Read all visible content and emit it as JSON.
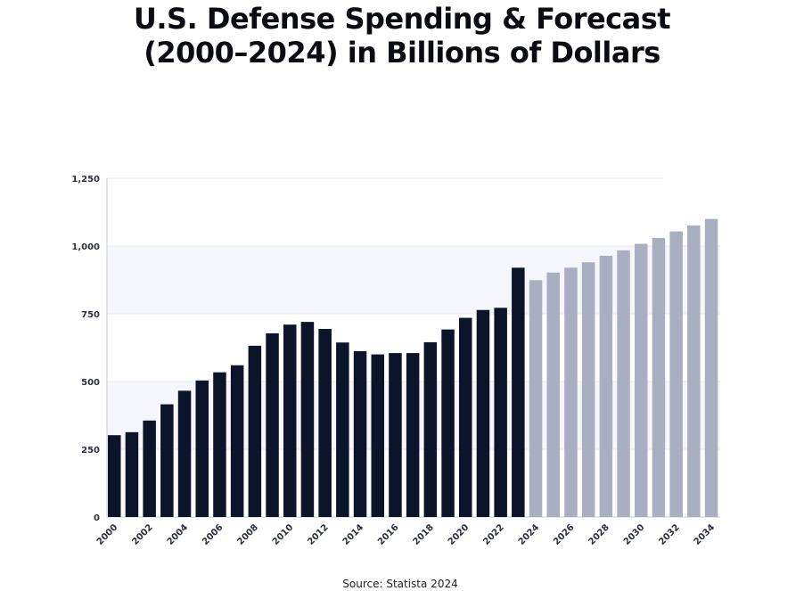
{
  "title_line1": "U.S. Defense Spending & Forecast",
  "title_line2": "(2000–2024) in Billions of Dollars",
  "source": "Source: Statista 2024",
  "chart_data": {
    "type": "bar",
    "title": "U.S. Defense Spending & Forecast (2000–2024) in Billions of Dollars",
    "xlabel": "",
    "ylabel": "",
    "ylim": [
      0,
      1250
    ],
    "yticks": [
      0,
      250,
      500,
      750,
      1000,
      1250
    ],
    "ytick_labels": [
      "0",
      "250",
      "500",
      "750",
      "1,000",
      "1,250"
    ],
    "xtick_labels": [
      "2000",
      "2002",
      "2004",
      "2006",
      "2008",
      "2010",
      "2012",
      "2014",
      "2016",
      "2018",
      "2020",
      "2022",
      "2024",
      "2026",
      "2028",
      "2030",
      "2032",
      "2034"
    ],
    "grid": true,
    "series": [
      {
        "color": "#0b1428",
        "categories": [
          "2000",
          "2001",
          "2002",
          "2003",
          "2004",
          "2005",
          "2006",
          "2007",
          "2008",
          "2009",
          "2010",
          "2011",
          "2012",
          "2013",
          "2014",
          "2015",
          "2016",
          "2017",
          "2018",
          "2019",
          "2020",
          "2021",
          "2022",
          "2023"
        ],
        "values": [
          302,
          313,
          356,
          416,
          466,
          504,
          534,
          560,
          632,
          678,
          710,
          720,
          694,
          644,
          612,
          600,
          605,
          605,
          645,
          692,
          735,
          764,
          772,
          920
        ]
      },
      {
        "color": "#a9aec1",
        "categories": [
          "2024",
          "2025",
          "2026",
          "2027",
          "2028",
          "2029",
          "2030",
          "2031",
          "2032",
          "2033",
          "2034"
        ],
        "values": [
          874,
          902,
          920,
          940,
          964,
          984,
          1008,
          1030,
          1054,
          1076,
          1100
        ]
      }
    ]
  }
}
